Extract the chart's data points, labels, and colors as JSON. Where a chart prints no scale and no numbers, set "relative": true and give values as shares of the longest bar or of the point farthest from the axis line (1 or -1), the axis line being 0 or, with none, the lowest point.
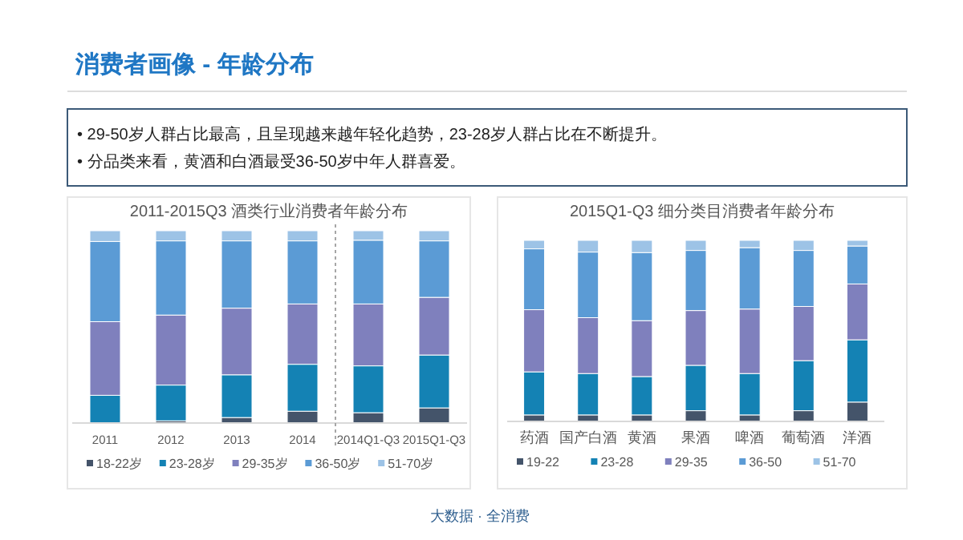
{
  "chart_data": [
    {
      "type": "other",
      "title": "消费者画像 - 年龄分布",
      "annotations": [
        "• 29-50岁人群占比最高，且呈现越来越年轻化趋势，23-28岁人群占比在不断提升。",
        "• 分品类来看，黄酒和白酒最受36-50岁中年人群喜爱。",
        "大数据 · 全消费"
      ]
    },
    {
      "type": "bar",
      "title": "2011-2015Q3 酒类行业消费者年龄分布",
      "categories": [
        "2011",
        "2012",
        "2013",
        "2014",
        "2014Q1-Q3",
        "2015Q1-Q3"
      ],
      "stacked": true,
      "relative": true,
      "legend": "bottom",
      "series": [
        {
          "name": "18-22岁",
          "color": "#44546a",
          "values": [
            0.0,
            0.011,
            0.028,
            0.061,
            0.053,
            0.078
          ]
        },
        {
          "name": "23-28岁",
          "color": "#1482b4",
          "values": [
            0.144,
            0.186,
            0.222,
            0.244,
            0.244,
            0.275
          ]
        },
        {
          "name": "29-35岁",
          "color": "#7f80bd",
          "values": [
            0.383,
            0.364,
            0.347,
            0.314,
            0.322,
            0.3
          ]
        },
        {
          "name": "36-50岁",
          "color": "#5b9bd5",
          "values": [
            0.417,
            0.386,
            0.35,
            0.328,
            0.331,
            0.294
          ]
        },
        {
          "name": "51-70岁",
          "color": "#9dc3e6",
          "values": [
            0.056,
            0.053,
            0.053,
            0.053,
            0.05,
            0.053
          ]
        }
      ]
    },
    {
      "type": "bar",
      "title": "2015Q1-Q3 细分类目消费者年龄分布",
      "categories": [
        "药酒",
        "国产白酒",
        "黄酒",
        "果酒",
        "啤酒",
        "葡萄酒",
        "洋酒"
      ],
      "stacked": true,
      "relative": true,
      "legend": "bottom",
      "series": [
        {
          "name": "19-22",
          "color": "#44546a",
          "values": [
            0.035,
            0.035,
            0.035,
            0.059,
            0.035,
            0.059,
            0.106
          ]
        },
        {
          "name": "23-28",
          "color": "#1482b4",
          "values": [
            0.238,
            0.229,
            0.212,
            0.25,
            0.229,
            0.276,
            0.344
          ]
        },
        {
          "name": "29-35",
          "color": "#7f80bd",
          "values": [
            0.344,
            0.309,
            0.309,
            0.303,
            0.356,
            0.3,
            0.309
          ]
        },
        {
          "name": "36-50",
          "color": "#5b9bd5",
          "values": [
            0.336,
            0.362,
            0.376,
            0.332,
            0.339,
            0.309,
            0.209
          ]
        },
        {
          "name": "51-70",
          "color": "#9dc3e6",
          "values": [
            0.047,
            0.065,
            0.068,
            0.056,
            0.041,
            0.056,
            0.032
          ]
        }
      ]
    }
  ]
}
